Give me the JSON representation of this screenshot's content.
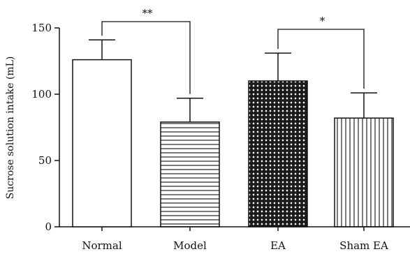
{
  "chart_data": {
    "type": "bar",
    "categories": [
      "Normal",
      "Model",
      "EA",
      "Sham EA"
    ],
    "values": [
      126,
      79,
      110,
      82
    ],
    "errors": [
      15,
      18,
      21,
      19
    ],
    "bar_patterns": [
      "none",
      "horizontal-lines",
      "dots",
      "vertical-lines"
    ],
    "ylabel": "Sucrose solution intake (mL)",
    "xlabel": "",
    "ylim": [
      0,
      150
    ],
    "yticks": [
      0,
      50,
      100,
      150
    ],
    "grid": false,
    "significance": [
      {
        "from": "Normal",
        "to": "Model",
        "label": "**"
      },
      {
        "from": "EA",
        "to": "Sham EA",
        "label": "*"
      }
    ]
  }
}
